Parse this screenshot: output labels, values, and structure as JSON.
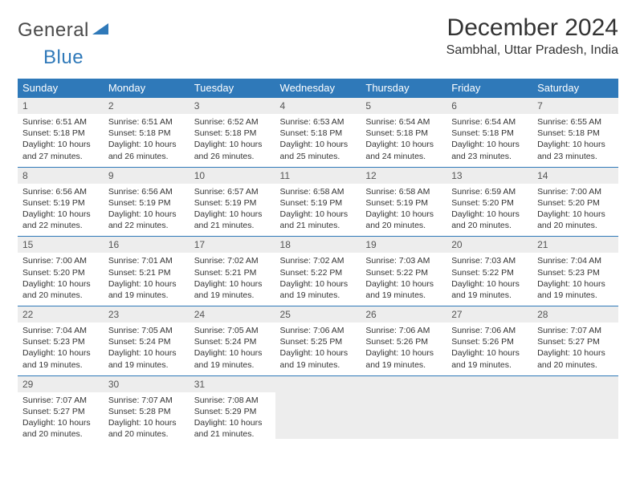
{
  "brand": {
    "part1": "General",
    "part2": "Blue",
    "color_accent": "#2f79b9",
    "color_text": "#4a4a4a"
  },
  "title": "December 2024",
  "location": "Sambhal, Uttar Pradesh, India",
  "header_bg": "#2f79b9",
  "header_fg": "#ffffff",
  "daynum_bg": "#ededed",
  "cell_border": "#2f79b9",
  "font_family": "Arial",
  "title_fontsize": 30,
  "location_fontsize": 16,
  "header_fontsize": 13,
  "daynum_fontsize": 12,
  "body_fontsize": 10.5,
  "weekdays": [
    "Sunday",
    "Monday",
    "Tuesday",
    "Wednesday",
    "Thursday",
    "Friday",
    "Saturday"
  ],
  "days": [
    {
      "n": 1,
      "sunrise": "6:51 AM",
      "sunset": "5:18 PM",
      "dl_h": 10,
      "dl_m": 27
    },
    {
      "n": 2,
      "sunrise": "6:51 AM",
      "sunset": "5:18 PM",
      "dl_h": 10,
      "dl_m": 26
    },
    {
      "n": 3,
      "sunrise": "6:52 AM",
      "sunset": "5:18 PM",
      "dl_h": 10,
      "dl_m": 26
    },
    {
      "n": 4,
      "sunrise": "6:53 AM",
      "sunset": "5:18 PM",
      "dl_h": 10,
      "dl_m": 25
    },
    {
      "n": 5,
      "sunrise": "6:54 AM",
      "sunset": "5:18 PM",
      "dl_h": 10,
      "dl_m": 24
    },
    {
      "n": 6,
      "sunrise": "6:54 AM",
      "sunset": "5:18 PM",
      "dl_h": 10,
      "dl_m": 23
    },
    {
      "n": 7,
      "sunrise": "6:55 AM",
      "sunset": "5:18 PM",
      "dl_h": 10,
      "dl_m": 23
    },
    {
      "n": 8,
      "sunrise": "6:56 AM",
      "sunset": "5:19 PM",
      "dl_h": 10,
      "dl_m": 22
    },
    {
      "n": 9,
      "sunrise": "6:56 AM",
      "sunset": "5:19 PM",
      "dl_h": 10,
      "dl_m": 22
    },
    {
      "n": 10,
      "sunrise": "6:57 AM",
      "sunset": "5:19 PM",
      "dl_h": 10,
      "dl_m": 21
    },
    {
      "n": 11,
      "sunrise": "6:58 AM",
      "sunset": "5:19 PM",
      "dl_h": 10,
      "dl_m": 21
    },
    {
      "n": 12,
      "sunrise": "6:58 AM",
      "sunset": "5:19 PM",
      "dl_h": 10,
      "dl_m": 20
    },
    {
      "n": 13,
      "sunrise": "6:59 AM",
      "sunset": "5:20 PM",
      "dl_h": 10,
      "dl_m": 20
    },
    {
      "n": 14,
      "sunrise": "7:00 AM",
      "sunset": "5:20 PM",
      "dl_h": 10,
      "dl_m": 20
    },
    {
      "n": 15,
      "sunrise": "7:00 AM",
      "sunset": "5:20 PM",
      "dl_h": 10,
      "dl_m": 20
    },
    {
      "n": 16,
      "sunrise": "7:01 AM",
      "sunset": "5:21 PM",
      "dl_h": 10,
      "dl_m": 19
    },
    {
      "n": 17,
      "sunrise": "7:02 AM",
      "sunset": "5:21 PM",
      "dl_h": 10,
      "dl_m": 19
    },
    {
      "n": 18,
      "sunrise": "7:02 AM",
      "sunset": "5:22 PM",
      "dl_h": 10,
      "dl_m": 19
    },
    {
      "n": 19,
      "sunrise": "7:03 AM",
      "sunset": "5:22 PM",
      "dl_h": 10,
      "dl_m": 19
    },
    {
      "n": 20,
      "sunrise": "7:03 AM",
      "sunset": "5:22 PM",
      "dl_h": 10,
      "dl_m": 19
    },
    {
      "n": 21,
      "sunrise": "7:04 AM",
      "sunset": "5:23 PM",
      "dl_h": 10,
      "dl_m": 19
    },
    {
      "n": 22,
      "sunrise": "7:04 AM",
      "sunset": "5:23 PM",
      "dl_h": 10,
      "dl_m": 19
    },
    {
      "n": 23,
      "sunrise": "7:05 AM",
      "sunset": "5:24 PM",
      "dl_h": 10,
      "dl_m": 19
    },
    {
      "n": 24,
      "sunrise": "7:05 AM",
      "sunset": "5:24 PM",
      "dl_h": 10,
      "dl_m": 19
    },
    {
      "n": 25,
      "sunrise": "7:06 AM",
      "sunset": "5:25 PM",
      "dl_h": 10,
      "dl_m": 19
    },
    {
      "n": 26,
      "sunrise": "7:06 AM",
      "sunset": "5:26 PM",
      "dl_h": 10,
      "dl_m": 19
    },
    {
      "n": 27,
      "sunrise": "7:06 AM",
      "sunset": "5:26 PM",
      "dl_h": 10,
      "dl_m": 19
    },
    {
      "n": 28,
      "sunrise": "7:07 AM",
      "sunset": "5:27 PM",
      "dl_h": 10,
      "dl_m": 20
    },
    {
      "n": 29,
      "sunrise": "7:07 AM",
      "sunset": "5:27 PM",
      "dl_h": 10,
      "dl_m": 20
    },
    {
      "n": 30,
      "sunrise": "7:07 AM",
      "sunset": "5:28 PM",
      "dl_h": 10,
      "dl_m": 20
    },
    {
      "n": 31,
      "sunrise": "7:08 AM",
      "sunset": "5:29 PM",
      "dl_h": 10,
      "dl_m": 21
    }
  ],
  "total_cells": 35
}
